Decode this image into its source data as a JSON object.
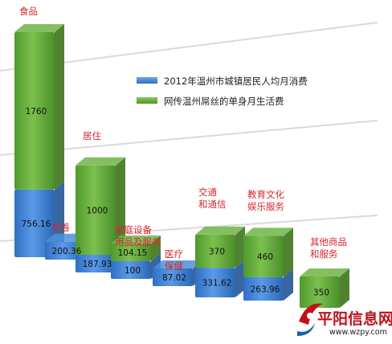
{
  "chart_data": {
    "type": "bar",
    "style": "stacked-3d-columns",
    "categories": [
      "食品",
      "衣着",
      "居住",
      "家庭设备\n用品及服务",
      "医疗\n保健",
      "交通\n和通信",
      "教育文化\n娱乐服务",
      "其他商品\n和服务"
    ],
    "series": [
      {
        "name": "2012年温州市城镇居民人均月消费",
        "color": "#3e7fd3",
        "values": [
          756.16,
          200.36,
          187.93,
          100,
          87.02,
          331.62,
          263.96,
          null
        ],
        "labels": [
          "756.16",
          "200.36",
          "187.93",
          "100",
          "87.02",
          "331.62",
          "263.96",
          ""
        ]
      },
      {
        "name": "网传温州屌丝的单身月生活费",
        "color": "#63a83c",
        "values": [
          1760,
          null,
          1000,
          104.15,
          null,
          370,
          460,
          350
        ],
        "labels": [
          "1760",
          "",
          "1000",
          "104.15",
          "",
          "370",
          "460",
          "350"
        ]
      }
    ],
    "legend_position": "top-right",
    "grid": true
  },
  "watermark": {
    "name": "平阳信息网",
    "url": "www.wzpy.com"
  }
}
